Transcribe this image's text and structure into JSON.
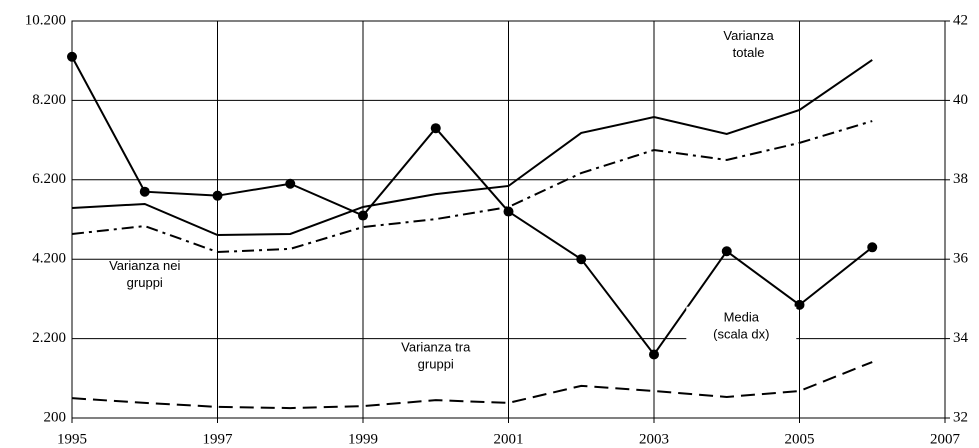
{
  "chart_data": {
    "type": "line",
    "x": [
      1995,
      1996,
      1997,
      1998,
      1999,
      2000,
      2001,
      2002,
      2003,
      2004,
      2005,
      2006
    ],
    "xlim": [
      1995,
      2007
    ],
    "xticks": [
      1995,
      1997,
      1999,
      2001,
      2003,
      2005,
      2007
    ],
    "ylim": [
      200,
      10200
    ],
    "yticks": [
      200,
      {
        "value": 2200,
        "label": "2.200"
      },
      {
        "value": 4200,
        "label": "4.200"
      },
      {
        "value": 6200,
        "label": "6.200"
      },
      {
        "value": 8200,
        "label": "8.200"
      },
      {
        "value": 10200,
        "label": "10.200"
      }
    ],
    "y2lim": [
      32,
      42
    ],
    "y2ticks": [
      32,
      34,
      36,
      38,
      40,
      42
    ],
    "grid": true,
    "series": [
      {
        "color": "#000000",
        "dash": "solid",
        "values": [
          5490,
          5590,
          4810,
          4835,
          5515,
          5840,
          6045,
          7380,
          7780,
          7355,
          7960,
          9220
        ]
      },
      {
        "color": "#000000",
        "dash": "dashdot",
        "values": [
          4835,
          5035,
          4380,
          4460,
          5010,
          5210,
          5515,
          6370,
          6950,
          6700,
          7130,
          7680
        ]
      },
      {
        "color": "#000000",
        "dash": "dashed",
        "values": [
          700,
          580,
          480,
          450,
          500,
          650,
          580,
          1010,
          880,
          730,
          880,
          1610
        ]
      },
      {
        "color": "#000000",
        "dash": "solid",
        "marker": "circle",
        "axis": "y2",
        "values": [
          41.1,
          37.7,
          37.6,
          37.9,
          37.1,
          39.3,
          37.2,
          36.0,
          33.6,
          36.2,
          34.85,
          36.3
        ]
      }
    ],
    "annotations": [
      {
        "lines": [
          "Varianza",
          "totale"
        ],
        "at": [
          2004.3,
          9600
        ]
      },
      {
        "lines": [
          "Varianza nei",
          "gruppi"
        ],
        "at": [
          1996.0,
          3800
        ]
      },
      {
        "lines": [
          "Media",
          "(scala dx)"
        ],
        "at": [
          2004.2,
          34.3
        ],
        "axis": "y2"
      },
      {
        "lines": [
          "Varianza tra",
          "gruppi"
        ],
        "at": [
          2000.0,
          1750
        ]
      }
    ]
  }
}
